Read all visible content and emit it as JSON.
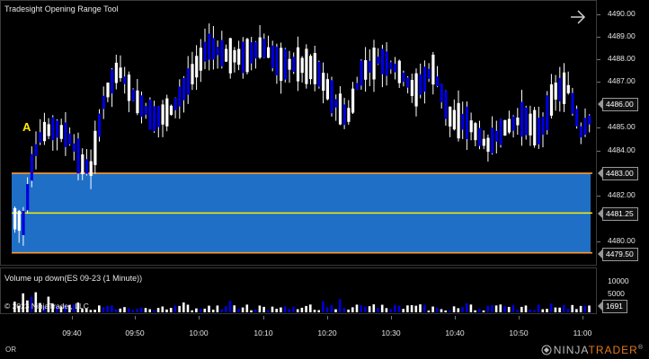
{
  "chart": {
    "title": "Tradesight Opening Range Tool",
    "marker_label": "A",
    "colors": {
      "background": "#000000",
      "up_candle": "#ffffff",
      "down_candle": "#0000dd",
      "range_fill": "#1f6fc6",
      "range_border": "#ff9a2e",
      "mid_line": "#ffee00"
    },
    "price_ticks": [
      "4490.00",
      "4489.00",
      "4488.00",
      "4487.00",
      "4486.00",
      "4485.00",
      "4484.00",
      "4483.00",
      "4482.00",
      "4481.00",
      "4480.00"
    ],
    "price_tags": {
      "current": "4486.00",
      "range_high": "4483.00",
      "range_mid": "4481.25",
      "range_low": "4479.50"
    },
    "opening_range": {
      "high": 4483.0,
      "mid": 4481.25,
      "low": 4479.5
    }
  },
  "volume": {
    "title": "Volume up down(ES 09-23 (1 Minute))",
    "ticks": [
      "10000",
      "5000",
      "0"
    ],
    "current": "1691",
    "copyright": "© 2023 NinjaTrader, LLC"
  },
  "time_axis": {
    "labels": [
      "09:40",
      "09:50",
      "10:00",
      "10:10",
      "10:20",
      "10:30",
      "10:40",
      "10:50",
      "11:00"
    ]
  },
  "footer": {
    "left": "OR",
    "logo_ninja": "NINJA",
    "logo_trader": "TRADER",
    "logo_reg": "®"
  },
  "icons": {
    "forward": "arrow-right-icon",
    "logo": "ninjatrader-logo-icon"
  }
}
